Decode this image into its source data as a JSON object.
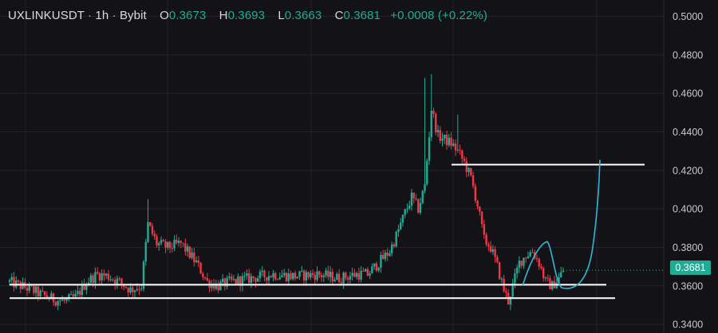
{
  "legend": {
    "symbol": "UXLINKUSDT",
    "interval": "1h",
    "exchange": "Bybit",
    "open_key": "O",
    "open": "0.3673",
    "high_key": "H",
    "high": "0.3693",
    "low_key": "L",
    "low": "0.3663",
    "close_key": "C",
    "close": "0.3681",
    "change": "+0.0008 (+0.22%)"
  },
  "price_axis": {
    "ticks": [
      "0.5000",
      "0.4800",
      "0.4600",
      "0.4400",
      "0.4200",
      "0.4000",
      "0.3800",
      "0.3600",
      "0.3400"
    ],
    "current_price": "0.3681"
  },
  "colors": {
    "background": "#131217",
    "up": "#22ab94",
    "down": "#f23645",
    "annotation": "#ffffff",
    "projection": "#2fb8d8",
    "grid": "#24232a"
  },
  "chart_data": {
    "type": "candlestick",
    "symbol": "UXLINKUSDT",
    "interval": "1h",
    "ylim": [
      0.3355,
      0.5085
    ],
    "ticks": [
      0.5,
      0.48,
      0.46,
      0.44,
      0.42,
      0.4,
      0.38,
      0.36,
      0.34
    ],
    "last_close": 0.3681,
    "path": [
      [
        0,
        0.362
      ],
      [
        5,
        0.36
      ],
      [
        10,
        0.358
      ],
      [
        15,
        0.355
      ],
      [
        20,
        0.353
      ],
      [
        25,
        0.352
      ],
      [
        30,
        0.354
      ],
      [
        35,
        0.362
      ],
      [
        40,
        0.366
      ],
      [
        45,
        0.365
      ],
      [
        50,
        0.362
      ],
      [
        55,
        0.358
      ],
      [
        60,
        0.36
      ],
      [
        63,
        0.392
      ],
      [
        67,
        0.382
      ],
      [
        72,
        0.38
      ],
      [
        78,
        0.382
      ],
      [
        85,
        0.372
      ],
      [
        90,
        0.362
      ],
      [
        95,
        0.36
      ],
      [
        100,
        0.362
      ],
      [
        110,
        0.364
      ],
      [
        120,
        0.366
      ],
      [
        130,
        0.365
      ],
      [
        140,
        0.366
      ],
      [
        150,
        0.364
      ],
      [
        158,
        0.366
      ],
      [
        163,
        0.366
      ],
      [
        168,
        0.372
      ],
      [
        173,
        0.378
      ],
      [
        176,
        0.386
      ],
      [
        180,
        0.398
      ],
      [
        183,
        0.406
      ],
      [
        186,
        0.4
      ],
      [
        189,
        0.412
      ],
      [
        192,
        0.452
      ],
      [
        195,
        0.438
      ],
      [
        198,
        0.436
      ],
      [
        201,
        0.434
      ],
      [
        204,
        0.43
      ],
      [
        207,
        0.424
      ],
      [
        210,
        0.416
      ],
      [
        213,
        0.402
      ],
      [
        216,
        0.384
      ],
      [
        219,
        0.38
      ],
      [
        222,
        0.37
      ],
      [
        225,
        0.358
      ],
      [
        227,
        0.352
      ],
      [
        229,
        0.36
      ],
      [
        232,
        0.372
      ],
      [
        235,
        0.376
      ],
      [
        238,
        0.378
      ],
      [
        241,
        0.372
      ],
      [
        244,
        0.362
      ],
      [
        247,
        0.36
      ],
      [
        250,
        0.364
      ],
      [
        252,
        0.368
      ]
    ],
    "annotations": [
      {
        "type": "horizontal-line",
        "label": "resistance",
        "price": 0.423
      },
      {
        "type": "horizontal-line",
        "label": "support-upper",
        "price": 0.3606
      },
      {
        "type": "horizontal-line",
        "label": "support-lower",
        "price": 0.3536
      },
      {
        "type": "projection-curve",
        "label": "projected-cup",
        "start_price": 0.359,
        "end_price": 0.4255
      }
    ]
  }
}
